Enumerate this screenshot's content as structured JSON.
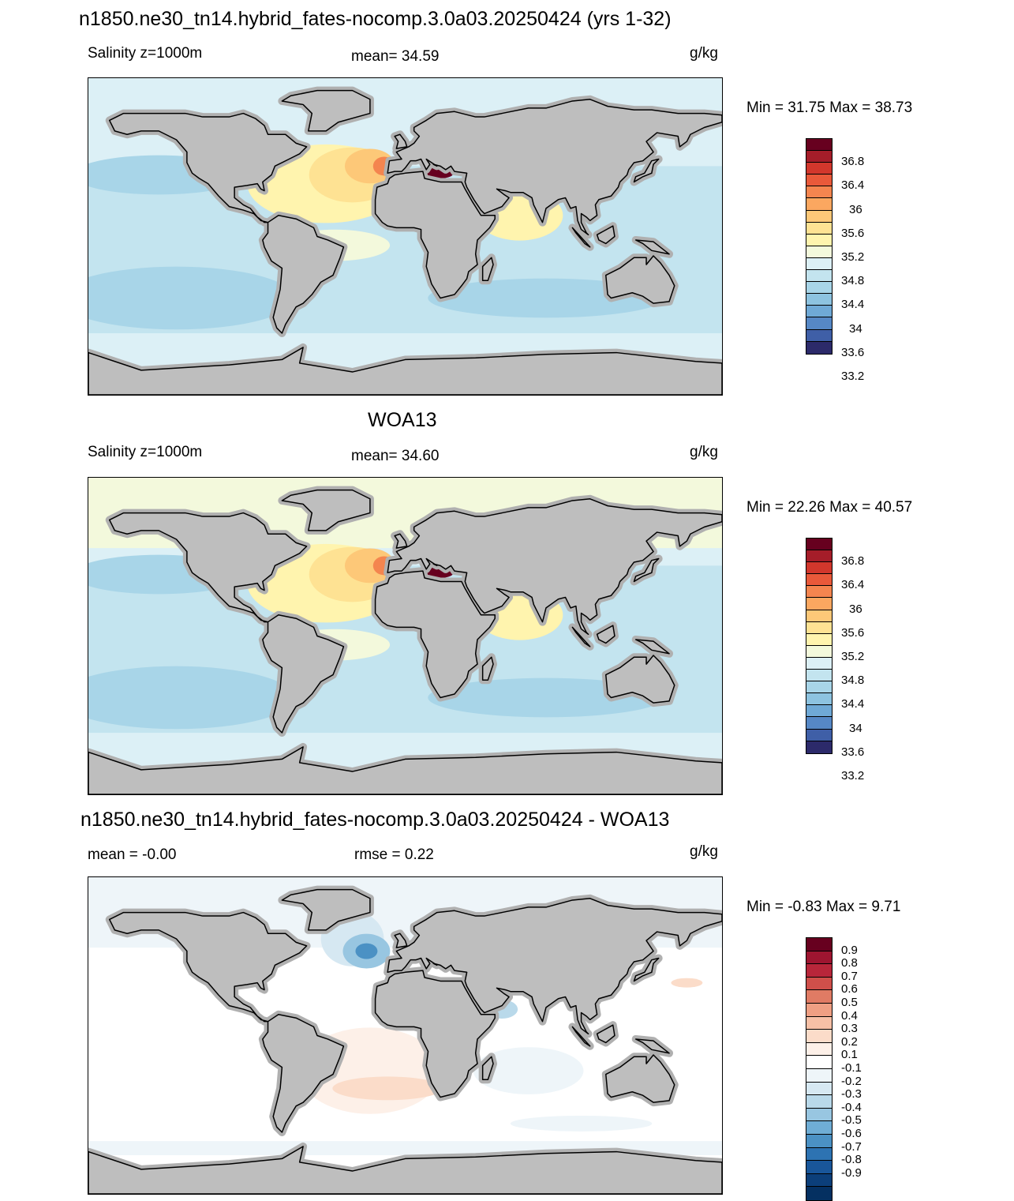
{
  "panels": [
    {
      "title": "n1850.ne30_tn14.hybrid_fates-nocomp.3.0a03.20250424 (yrs 1-32)",
      "left_label": "Salinity z=1000m",
      "center_label": "mean=  34.59",
      "units": "g/kg",
      "minmax": "Min =  31.75 Max =  38.73"
    },
    {
      "title": "WOA13",
      "left_label": "Salinity z=1000m",
      "center_label": "mean=  34.60",
      "units": "g/kg",
      "minmax": "Min =  22.26 Max =  40.57"
    },
    {
      "title": "n1850.ne30_tn14.hybrid_fates-nocomp.3.0a03.20250424 - WOA13",
      "left_label": "mean =  -0.00",
      "center_label": "rmse =   0.22",
      "units": "g/kg",
      "minmax": "Min =  -0.83 Max =   9.71"
    }
  ],
  "colorbar_salinity": {
    "colors": [
      "#67001f",
      "#a51d29",
      "#d2372c",
      "#e9593a",
      "#f4854f",
      "#fba760",
      "#fdc878",
      "#fee293",
      "#fff4ae",
      "#f3f9dc",
      "#dcf0f6",
      "#c3e4ef",
      "#a8d5e8",
      "#8dc3e0",
      "#6fa9d6",
      "#5688c6",
      "#3f5fa7",
      "#2c2a6a"
    ],
    "labels": [
      "36.8",
      "36.4",
      "36",
      "35.6",
      "35.2",
      "34.8",
      "34.4",
      "34",
      "33.6",
      "33.2"
    ]
  },
  "colorbar_diff": {
    "colors": [
      "#67001f",
      "#9e1530",
      "#b8263a",
      "#cf4f4a",
      "#e07b64",
      "#ef9f83",
      "#f7c0a6",
      "#fbdcc9",
      "#fdf0e8",
      "#ffffff",
      "#eef5f9",
      "#d6e8f2",
      "#b9d9ea",
      "#98c6e1",
      "#6fadd5",
      "#4b91c4",
      "#2d73b2",
      "#19569a",
      "#0c3f7a",
      "#053061"
    ],
    "labels": [
      "0.9",
      "0.8",
      "0.7",
      "0.6",
      "0.5",
      "0.4",
      "0.3",
      "0.2",
      "0.1",
      "-0.1",
      "-0.2",
      "-0.3",
      "-0.4",
      "-0.5",
      "-0.6",
      "-0.7",
      "-0.8",
      "-0.9"
    ]
  }
}
